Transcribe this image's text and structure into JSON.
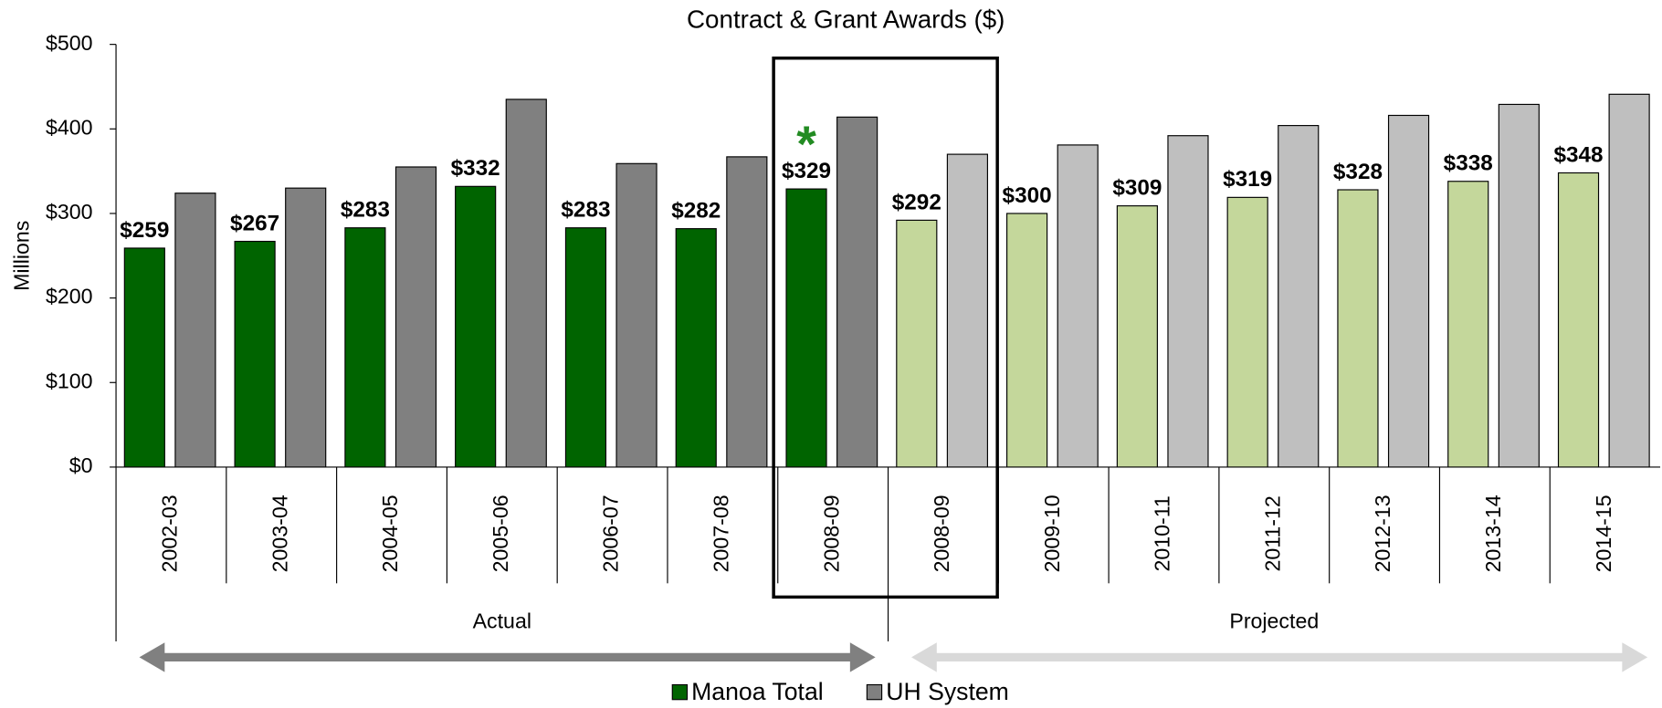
{
  "chart_data": {
    "type": "bar",
    "title": "Contract & Grant Awards ($)",
    "y_label": "Millions",
    "annotation": "*",
    "categories": [
      "2002-03",
      "2003-04",
      "2004-05",
      "2005-06",
      "2006-07",
      "2007-08",
      "2008-09",
      "2008-09",
      "2009-10",
      "2010-11",
      "2011-12",
      "2012-13",
      "2013-14",
      "2014-15"
    ],
    "groups": [
      "Actual",
      "Projected"
    ],
    "series": [
      {
        "name": "Manoa Total",
        "color": "#006400",
        "colors": [
          "#006400",
          "#006400",
          "#006400",
          "#006400",
          "#006400",
          "#006400",
          "#006400",
          "#c4d79b",
          "#c4d79b",
          "#c4d79b",
          "#c4d79b",
          "#c4d79b",
          "#c4d79b",
          "#c4d79b"
        ],
        "values": [
          259,
          267,
          283,
          332,
          283,
          282,
          329,
          292,
          300,
          309,
          319,
          328,
          338,
          348
        ],
        "value_labels": [
          "$259",
          "$267",
          "$283",
          "$332",
          "$283",
          "$282",
          "$329",
          "$292",
          "$300",
          "$309",
          "$319",
          "$328",
          "$338",
          "$348"
        ]
      },
      {
        "name": "UH System",
        "color": "#808080",
        "colors": [
          "#808080",
          "#808080",
          "#808080",
          "#808080",
          "#808080",
          "#808080",
          "#808080",
          "#bfbfbf",
          "#bfbfbf",
          "#bfbfbf",
          "#bfbfbf",
          "#bfbfbf",
          "#bfbfbf",
          "#bfbfbf"
        ],
        "values": [
          324,
          330,
          355,
          435,
          359,
          367,
          414,
          370,
          381,
          392,
          404,
          416,
          429,
          441
        ]
      }
    ],
    "ylim": [
      0,
      500
    ],
    "yticks": [
      {
        "value": 0,
        "label": "$0"
      },
      {
        "value": 100,
        "label": "$100"
      },
      {
        "value": 200,
        "label": "$200"
      },
      {
        "value": 300,
        "label": "$300"
      },
      {
        "value": 400,
        "label": "$400"
      },
      {
        "value": 500,
        "label": "$500"
      }
    ]
  }
}
